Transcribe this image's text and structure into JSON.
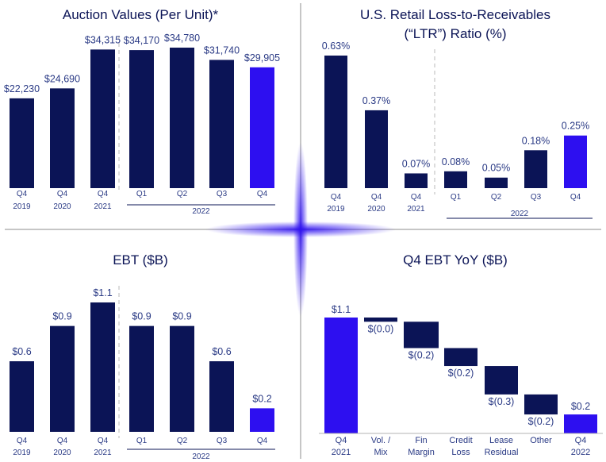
{
  "colors": {
    "navy": "#0b1456",
    "accent_blue": "#2d0ff0",
    "label_blue": "#2a3a85",
    "axis": "#0b1456",
    "divider": "#b3b3b3",
    "dashed": "#b8b8b8"
  },
  "chart_data": [
    {
      "type": "bar",
      "title": "Auction Values (Per Unit)*",
      "xlabel": "",
      "ylabel": "",
      "ylim": [
        0,
        40000
      ],
      "categories": [
        {
          "line1": "Q4",
          "line2": "2019"
        },
        {
          "line1": "Q4",
          "line2": "2020"
        },
        {
          "line1": "Q4",
          "line2": "2021"
        },
        {
          "line1": "Q1",
          "line2": ""
        },
        {
          "line1": "Q2",
          "line2": ""
        },
        {
          "line1": "Q3",
          "line2": ""
        },
        {
          "line1": "Q4",
          "line2": ""
        }
      ],
      "group_label": "2022",
      "values": [
        22230,
        24690,
        34315,
        34170,
        34780,
        31740,
        29905
      ],
      "data_labels": [
        "$22,230",
        "$24,690",
        "$34,315",
        "$34,170",
        "$34,780",
        "$31,740",
        "$29,905"
      ],
      "highlight": [
        false,
        false,
        false,
        false,
        false,
        false,
        true
      ]
    },
    {
      "type": "bar",
      "title": "U.S. Retail Loss-to-Receivables",
      "title_line2": "(“LTR”) Ratio (%)",
      "xlabel": "",
      "ylabel": "",
      "ylim": [
        0,
        0.8
      ],
      "categories": [
        {
          "line1": "Q4",
          "line2": "2019"
        },
        {
          "line1": "Q4",
          "line2": "2020"
        },
        {
          "line1": "Q4",
          "line2": "2021"
        },
        {
          "line1": "Q1",
          "line2": ""
        },
        {
          "line1": "Q2",
          "line2": ""
        },
        {
          "line1": "Q3",
          "line2": ""
        },
        {
          "line1": "Q4",
          "line2": ""
        }
      ],
      "group_label": "2022",
      "values": [
        0.63,
        0.37,
        0.07,
        0.08,
        0.05,
        0.18,
        0.25
      ],
      "data_labels": [
        "0.63%",
        "0.37%",
        "0.07%",
        "0.08%",
        "0.05%",
        "0.18%",
        "0.25%"
      ],
      "highlight": [
        false,
        false,
        false,
        false,
        false,
        false,
        true
      ]
    },
    {
      "type": "bar",
      "title": "EBT ($B)",
      "xlabel": "",
      "ylabel": "",
      "ylim": [
        0,
        1.3
      ],
      "categories": [
        {
          "line1": "Q4",
          "line2": "2019"
        },
        {
          "line1": "Q4",
          "line2": "2020"
        },
        {
          "line1": "Q4",
          "line2": "2021"
        },
        {
          "line1": "Q1",
          "line2": ""
        },
        {
          "line1": "Q2",
          "line2": ""
        },
        {
          "line1": "Q3",
          "line2": ""
        },
        {
          "line1": "Q4",
          "line2": ""
        }
      ],
      "group_label": "2022",
      "values": [
        0.6,
        0.9,
        1.1,
        0.9,
        0.9,
        0.6,
        0.2
      ],
      "data_labels": [
        "$0.6",
        "$0.9",
        "$1.1",
        "$0.9",
        "$0.9",
        "$0.6",
        "$0.2"
      ],
      "highlight": [
        false,
        false,
        false,
        false,
        false,
        false,
        true
      ]
    },
    {
      "type": "waterfall",
      "title": "Q4 EBT YoY ($B)",
      "xlabel": "",
      "ylabel": "",
      "ylim": [
        0,
        1.3
      ],
      "categories": [
        {
          "line1": "Q4",
          "line2": "2021"
        },
        {
          "line1": "Vol. /",
          "line2": "Mix"
        },
        {
          "line1": "Fin",
          "line2": "Margin"
        },
        {
          "line1": "Credit",
          "line2": "Loss"
        },
        {
          "line1": "Lease",
          "line2": "Residual"
        },
        {
          "line1": "Other",
          "line2": ""
        },
        {
          "line1": "Q4",
          "line2": "2022"
        }
      ],
      "steps": [
        {
          "kind": "total",
          "value": 1.1
        },
        {
          "kind": "delta",
          "value": -0.04
        },
        {
          "kind": "delta",
          "value": -0.25
        },
        {
          "kind": "delta",
          "value": -0.17
        },
        {
          "kind": "delta",
          "value": -0.27
        },
        {
          "kind": "delta",
          "value": -0.19
        },
        {
          "kind": "total",
          "value": 0.18
        }
      ],
      "data_labels": [
        "$1.1",
        "$(0.0)",
        "$(0.2)",
        "$(0.2)",
        "$(0.3)",
        "$(0.2)",
        "$0.2"
      ],
      "highlight": [
        true,
        false,
        false,
        false,
        false,
        false,
        true
      ]
    }
  ]
}
